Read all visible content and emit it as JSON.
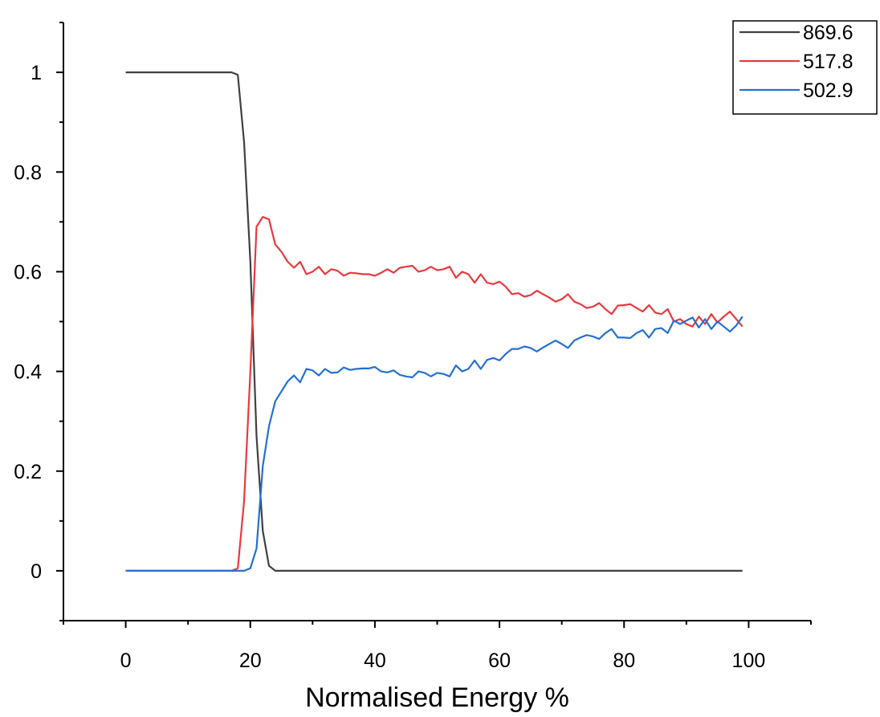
{
  "chart_data": {
    "type": "line",
    "title": "",
    "xlabel": "Normalised Energy  %",
    "ylabel": "",
    "xlim": [
      -10,
      110
    ],
    "ylim": [
      -0.1,
      1.1
    ],
    "xticks": [
      0,
      20,
      40,
      60,
      80,
      100
    ],
    "xtick_labels": [
      "0",
      "20",
      "40",
      "60",
      "80",
      "100"
    ],
    "yticks": [
      0,
      0.2,
      0.4,
      0.6,
      0.8,
      1
    ],
    "ytick_labels": [
      "0",
      "0.2",
      "0.4",
      "0.6",
      "0.8",
      "1"
    ],
    "grid": false,
    "legend_position": "top-right",
    "x": [
      0,
      1,
      2,
      3,
      4,
      5,
      6,
      7,
      8,
      9,
      10,
      11,
      12,
      13,
      14,
      15,
      16,
      17,
      18,
      19,
      20,
      21,
      22,
      23,
      24,
      25,
      26,
      27,
      28,
      29,
      30,
      31,
      32,
      33,
      34,
      35,
      36,
      37,
      38,
      39,
      40,
      41,
      42,
      43,
      44,
      45,
      46,
      47,
      48,
      49,
      50,
      51,
      52,
      53,
      54,
      55,
      56,
      57,
      58,
      59,
      60,
      61,
      62,
      63,
      64,
      65,
      66,
      67,
      68,
      69,
      70,
      71,
      72,
      73,
      74,
      75,
      76,
      77,
      78,
      79,
      80,
      81,
      82,
      83,
      84,
      85,
      86,
      87,
      88,
      89,
      90,
      91,
      92,
      93,
      94,
      95,
      96,
      97,
      98,
      99
    ],
    "series": [
      {
        "name": "869.6",
        "color": "#404040",
        "values": [
          1,
          1,
          1,
          1,
          1,
          1,
          1,
          1,
          1,
          1,
          1,
          1,
          1,
          1,
          1,
          1,
          1,
          1,
          0.995,
          0.86,
          0.62,
          0.27,
          0.08,
          0.01,
          0,
          0,
          0,
          0,
          0,
          0,
          0,
          0,
          0,
          0,
          0,
          0,
          0,
          0,
          0,
          0,
          0,
          0,
          0,
          0,
          0,
          0,
          0,
          0,
          0,
          0,
          0,
          0,
          0,
          0,
          0,
          0,
          0,
          0,
          0,
          0,
          0,
          0,
          0,
          0,
          0,
          0,
          0,
          0,
          0,
          0,
          0,
          0,
          0,
          0,
          0,
          0,
          0,
          0,
          0,
          0,
          0,
          0,
          0,
          0,
          0,
          0,
          0,
          0,
          0,
          0,
          0,
          0,
          0,
          0,
          0,
          0,
          0,
          0,
          0,
          0
        ]
      },
      {
        "name": "517.8",
        "color": "#e8393e",
        "values": [
          0,
          0,
          0,
          0,
          0,
          0,
          0,
          0,
          0,
          0,
          0,
          0,
          0,
          0,
          0,
          0,
          0,
          0,
          0.005,
          0.14,
          0.4,
          0.69,
          0.71,
          0.705,
          0.655,
          0.64,
          0.62,
          0.608,
          0.62,
          0.595,
          0.6,
          0.61,
          0.595,
          0.605,
          0.602,
          0.592,
          0.598,
          0.597,
          0.595,
          0.595,
          0.592,
          0.598,
          0.605,
          0.598,
          0.608,
          0.61,
          0.612,
          0.6,
          0.603,
          0.61,
          0.603,
          0.605,
          0.61,
          0.588,
          0.6,
          0.595,
          0.578,
          0.595,
          0.578,
          0.575,
          0.58,
          0.57,
          0.555,
          0.557,
          0.55,
          0.553,
          0.562,
          0.555,
          0.548,
          0.54,
          0.545,
          0.555,
          0.54,
          0.535,
          0.527,
          0.53,
          0.537,
          0.525,
          0.515,
          0.532,
          0.533,
          0.535,
          0.527,
          0.52,
          0.533,
          0.518,
          0.515,
          0.525,
          0.5,
          0.505,
          0.495,
          0.49,
          0.51,
          0.495,
          0.515,
          0.498,
          0.51,
          0.52,
          0.505,
          0.49
        ]
      },
      {
        "name": "502.9",
        "color": "#2470d1",
        "values": [
          0,
          0,
          0,
          0,
          0,
          0,
          0,
          0,
          0,
          0,
          0,
          0,
          0,
          0,
          0,
          0,
          0,
          0,
          0,
          0,
          0.005,
          0.045,
          0.21,
          0.29,
          0.34,
          0.36,
          0.38,
          0.392,
          0.378,
          0.405,
          0.402,
          0.392,
          0.405,
          0.397,
          0.398,
          0.408,
          0.403,
          0.405,
          0.406,
          0.406,
          0.409,
          0.4,
          0.398,
          0.402,
          0.393,
          0.39,
          0.388,
          0.4,
          0.397,
          0.39,
          0.397,
          0.395,
          0.39,
          0.412,
          0.4,
          0.405,
          0.422,
          0.405,
          0.423,
          0.427,
          0.422,
          0.435,
          0.445,
          0.445,
          0.45,
          0.447,
          0.44,
          0.448,
          0.455,
          0.462,
          0.455,
          0.447,
          0.462,
          0.468,
          0.473,
          0.47,
          0.465,
          0.477,
          0.485,
          0.468,
          0.468,
          0.467,
          0.477,
          0.483,
          0.468,
          0.485,
          0.487,
          0.477,
          0.502,
          0.495,
          0.502,
          0.508,
          0.488,
          0.505,
          0.485,
          0.5,
          0.49,
          0.48,
          0.492,
          0.51
        ]
      }
    ]
  }
}
